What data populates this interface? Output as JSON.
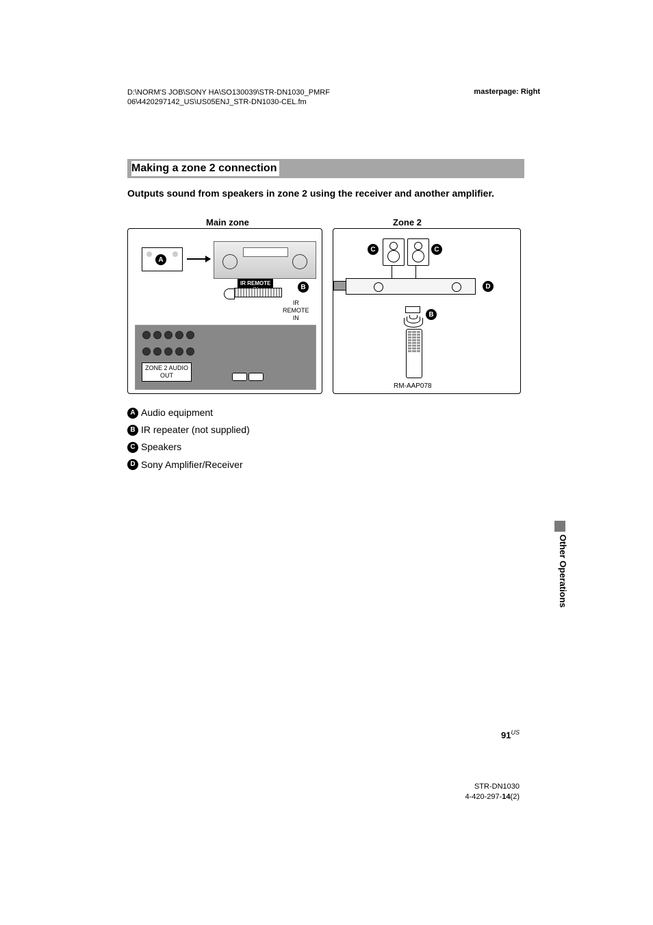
{
  "header": {
    "path1": "D:\\NORM'S JOB\\SONY HA\\SO130039\\STR-DN1030_PMRF",
    "path2": "06\\4420297142_US\\US05ENJ_STR-DN1030-CEL.fm",
    "masterpage": "masterpage: Right"
  },
  "section": {
    "title": "Making a zone 2 connection",
    "subtitle": "Outputs sound from speakers in zone 2 using the receiver and another amplifier."
  },
  "diagram": {
    "main_zone_label": "Main zone",
    "zone2_label": "Zone 2",
    "model": "STR-DN1030",
    "ir_remote_in_box": "IR REMOTE\nIN",
    "ir_remote_in_text": "IR\nREMOTE\nIN",
    "zone2_audio_out": "ZONE 2 AUDIO\nOUT",
    "remote_model": "RM-AAP078",
    "marker_A": "A",
    "marker_B": "B",
    "marker_C": "C",
    "marker_D": "D"
  },
  "legend": {
    "A": "Audio equipment",
    "B": "IR repeater (not supplied)",
    "C": "Speakers",
    "D": "Sony Amplifier/Receiver"
  },
  "side_tab": "Other Operations",
  "page": {
    "number": "91",
    "region": "US"
  },
  "footer": {
    "model": "STR-DN1030",
    "doc_pre": "4-420-297-",
    "doc_bold": "14",
    "doc_suf": "(2)"
  },
  "colors": {
    "bar_bg": "#a6a6a6",
    "text": "#000000",
    "panel_gray": "#888888"
  }
}
